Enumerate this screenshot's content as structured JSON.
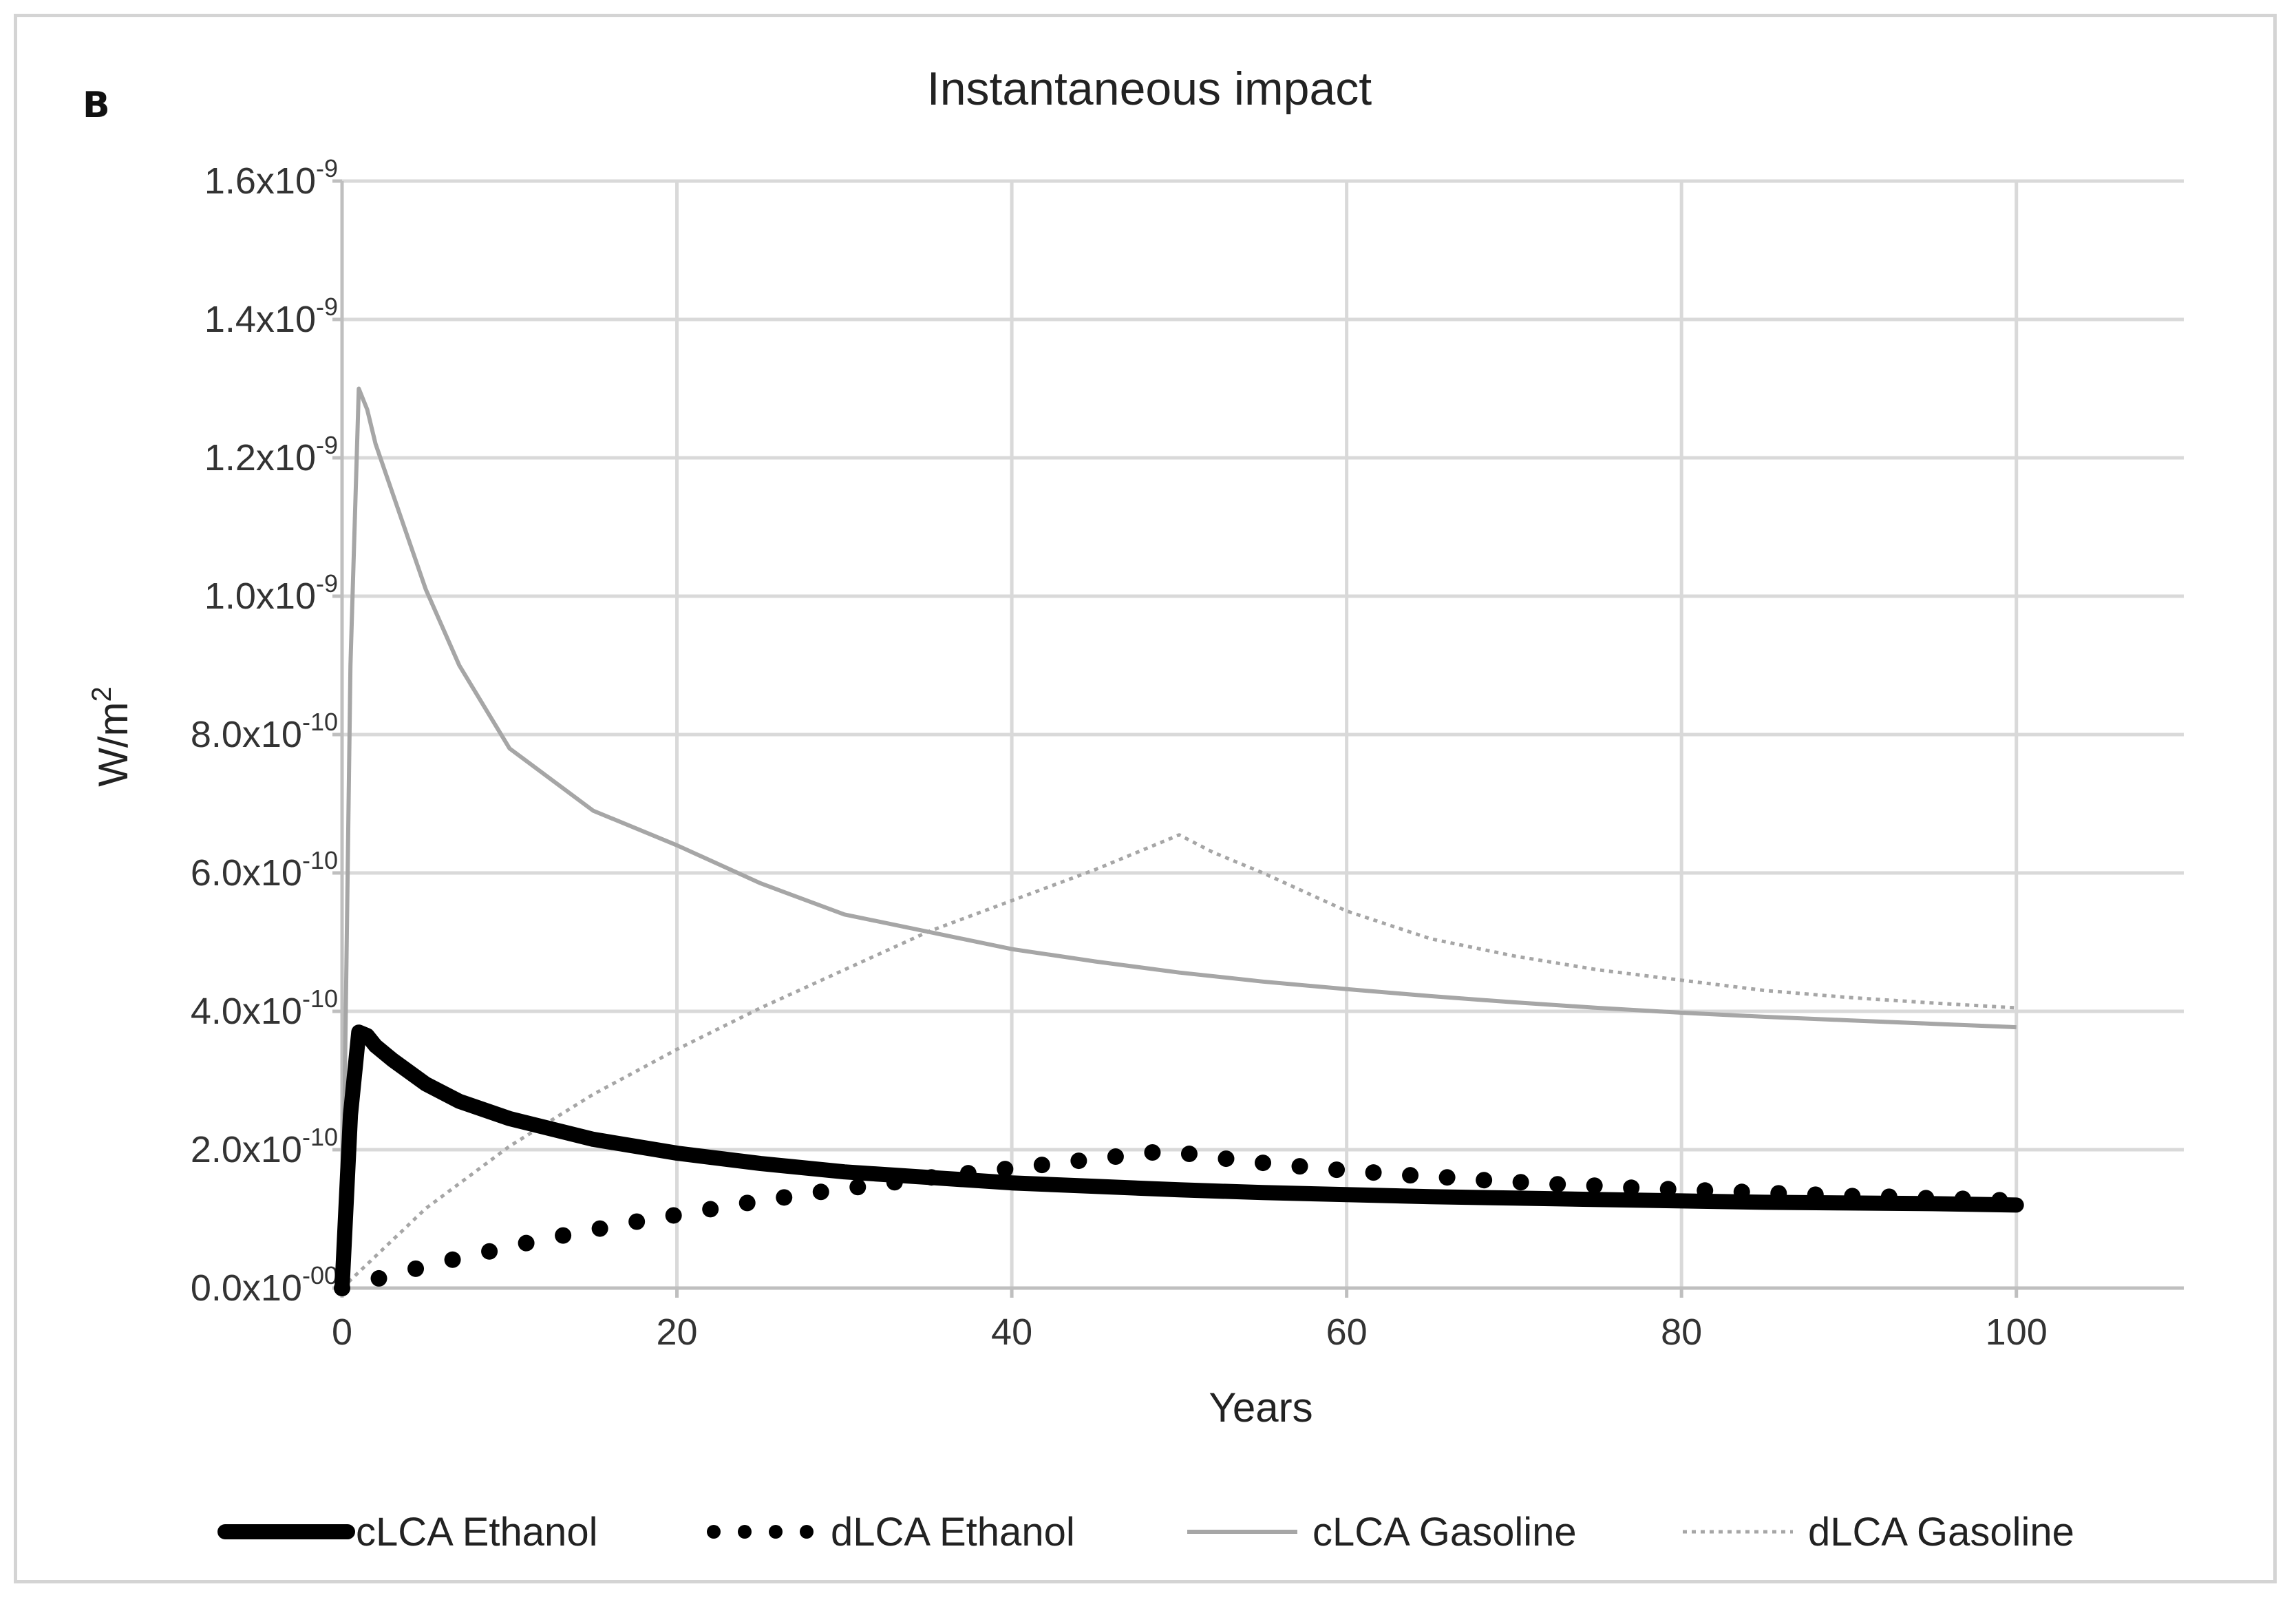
{
  "panel_label": "B",
  "chart_data": {
    "type": "line",
    "title": "Instantaneous impact",
    "xlabel": "Years",
    "ylabel": {
      "base": "W/m",
      "sup": "2"
    },
    "xlim": [
      0,
      110
    ],
    "ylim": [
      0,
      1.6e-09
    ],
    "x_ticks": [
      {
        "value": 0,
        "label": "0"
      },
      {
        "value": 20,
        "label": "20"
      },
      {
        "value": 40,
        "label": "40"
      },
      {
        "value": 60,
        "label": "60"
      },
      {
        "value": 80,
        "label": "80"
      },
      {
        "value": 100,
        "label": "100"
      }
    ],
    "y_ticks": [
      {
        "value": 0,
        "mant": "0.0x10",
        "exp": "-00"
      },
      {
        "value": 2e-10,
        "mant": "2.0x10",
        "exp": "-10"
      },
      {
        "value": 4e-10,
        "mant": "4.0x10",
        "exp": "-10"
      },
      {
        "value": 6e-10,
        "mant": "6.0x10",
        "exp": "-10"
      },
      {
        "value": 8e-10,
        "mant": "8.0x10",
        "exp": "-10"
      },
      {
        "value": 1e-09,
        "mant": "1.0x10",
        "exp": "-9"
      },
      {
        "value": 1.2e-09,
        "mant": "1.2x10",
        "exp": "-9"
      },
      {
        "value": 1.4e-09,
        "mant": "1.4x10",
        "exp": "-9"
      },
      {
        "value": 1.6e-09,
        "mant": "1.6x10",
        "exp": "-9"
      }
    ],
    "grid": true,
    "legend_position": "bottom",
    "series": [
      {
        "id": "clca-ethanol",
        "name": "cLCA Ethanol",
        "style": "thick-solid",
        "color": "#000000",
        "points": [
          [
            0,
            0
          ],
          [
            0.5,
            2.5e-10
          ],
          [
            1,
            3.7e-10
          ],
          [
            1.5,
            3.65e-10
          ],
          [
            2,
            3.5e-10
          ],
          [
            3,
            3.3e-10
          ],
          [
            5,
            2.95e-10
          ],
          [
            7,
            2.7e-10
          ],
          [
            10,
            2.45e-10
          ],
          [
            15,
            2.15e-10
          ],
          [
            20,
            1.95e-10
          ],
          [
            25,
            1.8e-10
          ],
          [
            30,
            1.68e-10
          ],
          [
            35,
            1.6e-10
          ],
          [
            40,
            1.52e-10
          ],
          [
            45,
            1.47e-10
          ],
          [
            50,
            1.42e-10
          ],
          [
            55,
            1.38e-10
          ],
          [
            60,
            1.35e-10
          ],
          [
            65,
            1.32e-10
          ],
          [
            70,
            1.3e-10
          ],
          [
            75,
            1.28e-10
          ],
          [
            80,
            1.26e-10
          ],
          [
            85,
            1.24e-10
          ],
          [
            90,
            1.23e-10
          ],
          [
            95,
            1.22e-10
          ],
          [
            100,
            1.2e-10
          ]
        ]
      },
      {
        "id": "dlca-ethanol",
        "name": "dLCA Ethanol",
        "style": "dotted-markers",
        "color": "#000000",
        "points": [
          [
            0,
            0
          ],
          [
            2.2,
            1.4e-11
          ],
          [
            4.4,
            2.8e-11
          ],
          [
            6.6,
            4.1e-11
          ],
          [
            8.8,
            5.3e-11
          ],
          [
            11,
            6.5e-11
          ],
          [
            13.2,
            7.6e-11
          ],
          [
            15.4,
            8.6e-11
          ],
          [
            17.6,
            9.6e-11
          ],
          [
            19.8,
            1.05e-10
          ],
          [
            22,
            1.14e-10
          ],
          [
            24.2,
            1.23e-10
          ],
          [
            26.4,
            1.31e-10
          ],
          [
            28.6,
            1.39e-10
          ],
          [
            30.8,
            1.46e-10
          ],
          [
            33,
            1.53e-10
          ],
          [
            35.2,
            1.6e-10
          ],
          [
            37.4,
            1.66e-10
          ],
          [
            39.6,
            1.72e-10
          ],
          [
            41.8,
            1.78e-10
          ],
          [
            44,
            1.84e-10
          ],
          [
            46.2,
            1.9e-10
          ],
          [
            48.4,
            1.96e-10
          ],
          [
            50.6,
            1.94e-10
          ],
          [
            52.8,
            1.87e-10
          ],
          [
            55,
            1.81e-10
          ],
          [
            57.2,
            1.76e-10
          ],
          [
            59.4,
            1.71e-10
          ],
          [
            61.6,
            1.67e-10
          ],
          [
            63.8,
            1.63e-10
          ],
          [
            66,
            1.6e-10
          ],
          [
            68.2,
            1.56e-10
          ],
          [
            70.4,
            1.53e-10
          ],
          [
            72.6,
            1.5e-10
          ],
          [
            74.8,
            1.48e-10
          ],
          [
            77,
            1.45e-10
          ],
          [
            79.2,
            1.43e-10
          ],
          [
            81.4,
            1.41e-10
          ],
          [
            83.6,
            1.39e-10
          ],
          [
            85.8,
            1.37e-10
          ],
          [
            88,
            1.35e-10
          ],
          [
            90.2,
            1.33e-10
          ],
          [
            92.4,
            1.32e-10
          ],
          [
            94.6,
            1.3e-10
          ],
          [
            96.8,
            1.29e-10
          ],
          [
            99,
            1.27e-10
          ]
        ]
      },
      {
        "id": "clca-gasoline",
        "name": "cLCA Gasoline",
        "style": "thin-solid",
        "color": "#a6a6a6",
        "points": [
          [
            0,
            0
          ],
          [
            0.5,
            9e-10
          ],
          [
            1,
            1.3e-09
          ],
          [
            1.5,
            1.27e-09
          ],
          [
            2,
            1.22e-09
          ],
          [
            3,
            1.15e-09
          ],
          [
            5,
            1.01e-09
          ],
          [
            7,
            9e-10
          ],
          [
            10,
            7.8e-10
          ],
          [
            15,
            6.9e-10
          ],
          [
            20,
            6.4e-10
          ],
          [
            25,
            5.85e-10
          ],
          [
            30,
            5.4e-10
          ],
          [
            35,
            5.15e-10
          ],
          [
            40,
            4.9e-10
          ],
          [
            45,
            4.72e-10
          ],
          [
            50,
            4.56e-10
          ],
          [
            55,
            4.43e-10
          ],
          [
            60,
            4.32e-10
          ],
          [
            65,
            4.22e-10
          ],
          [
            70,
            4.13e-10
          ],
          [
            75,
            4.05e-10
          ],
          [
            80,
            3.98e-10
          ],
          [
            85,
            3.92e-10
          ],
          [
            90,
            3.87e-10
          ],
          [
            95,
            3.82e-10
          ],
          [
            100,
            3.77e-10
          ]
        ]
      },
      {
        "id": "dlca-gasoline",
        "name": "dLCA Gasoline",
        "style": "thin-dotted",
        "color": "#a6a6a6",
        "points": [
          [
            0,
            0
          ],
          [
            5,
            1.15e-10
          ],
          [
            10,
            2.05e-10
          ],
          [
            15,
            2.8e-10
          ],
          [
            20,
            3.45e-10
          ],
          [
            25,
            4.05e-10
          ],
          [
            30,
            4.6e-10
          ],
          [
            35,
            5.15e-10
          ],
          [
            40,
            5.6e-10
          ],
          [
            45,
            6.05e-10
          ],
          [
            50,
            6.55e-10
          ],
          [
            52,
            6.3e-10
          ],
          [
            55,
            6e-10
          ],
          [
            60,
            5.45e-10
          ],
          [
            65,
            5.05e-10
          ],
          [
            70,
            4.8e-10
          ],
          [
            75,
            4.6e-10
          ],
          [
            80,
            4.45e-10
          ],
          [
            85,
            4.3e-10
          ],
          [
            90,
            4.2e-10
          ],
          [
            95,
            4.12e-10
          ],
          [
            100,
            4.05e-10
          ]
        ]
      }
    ]
  }
}
